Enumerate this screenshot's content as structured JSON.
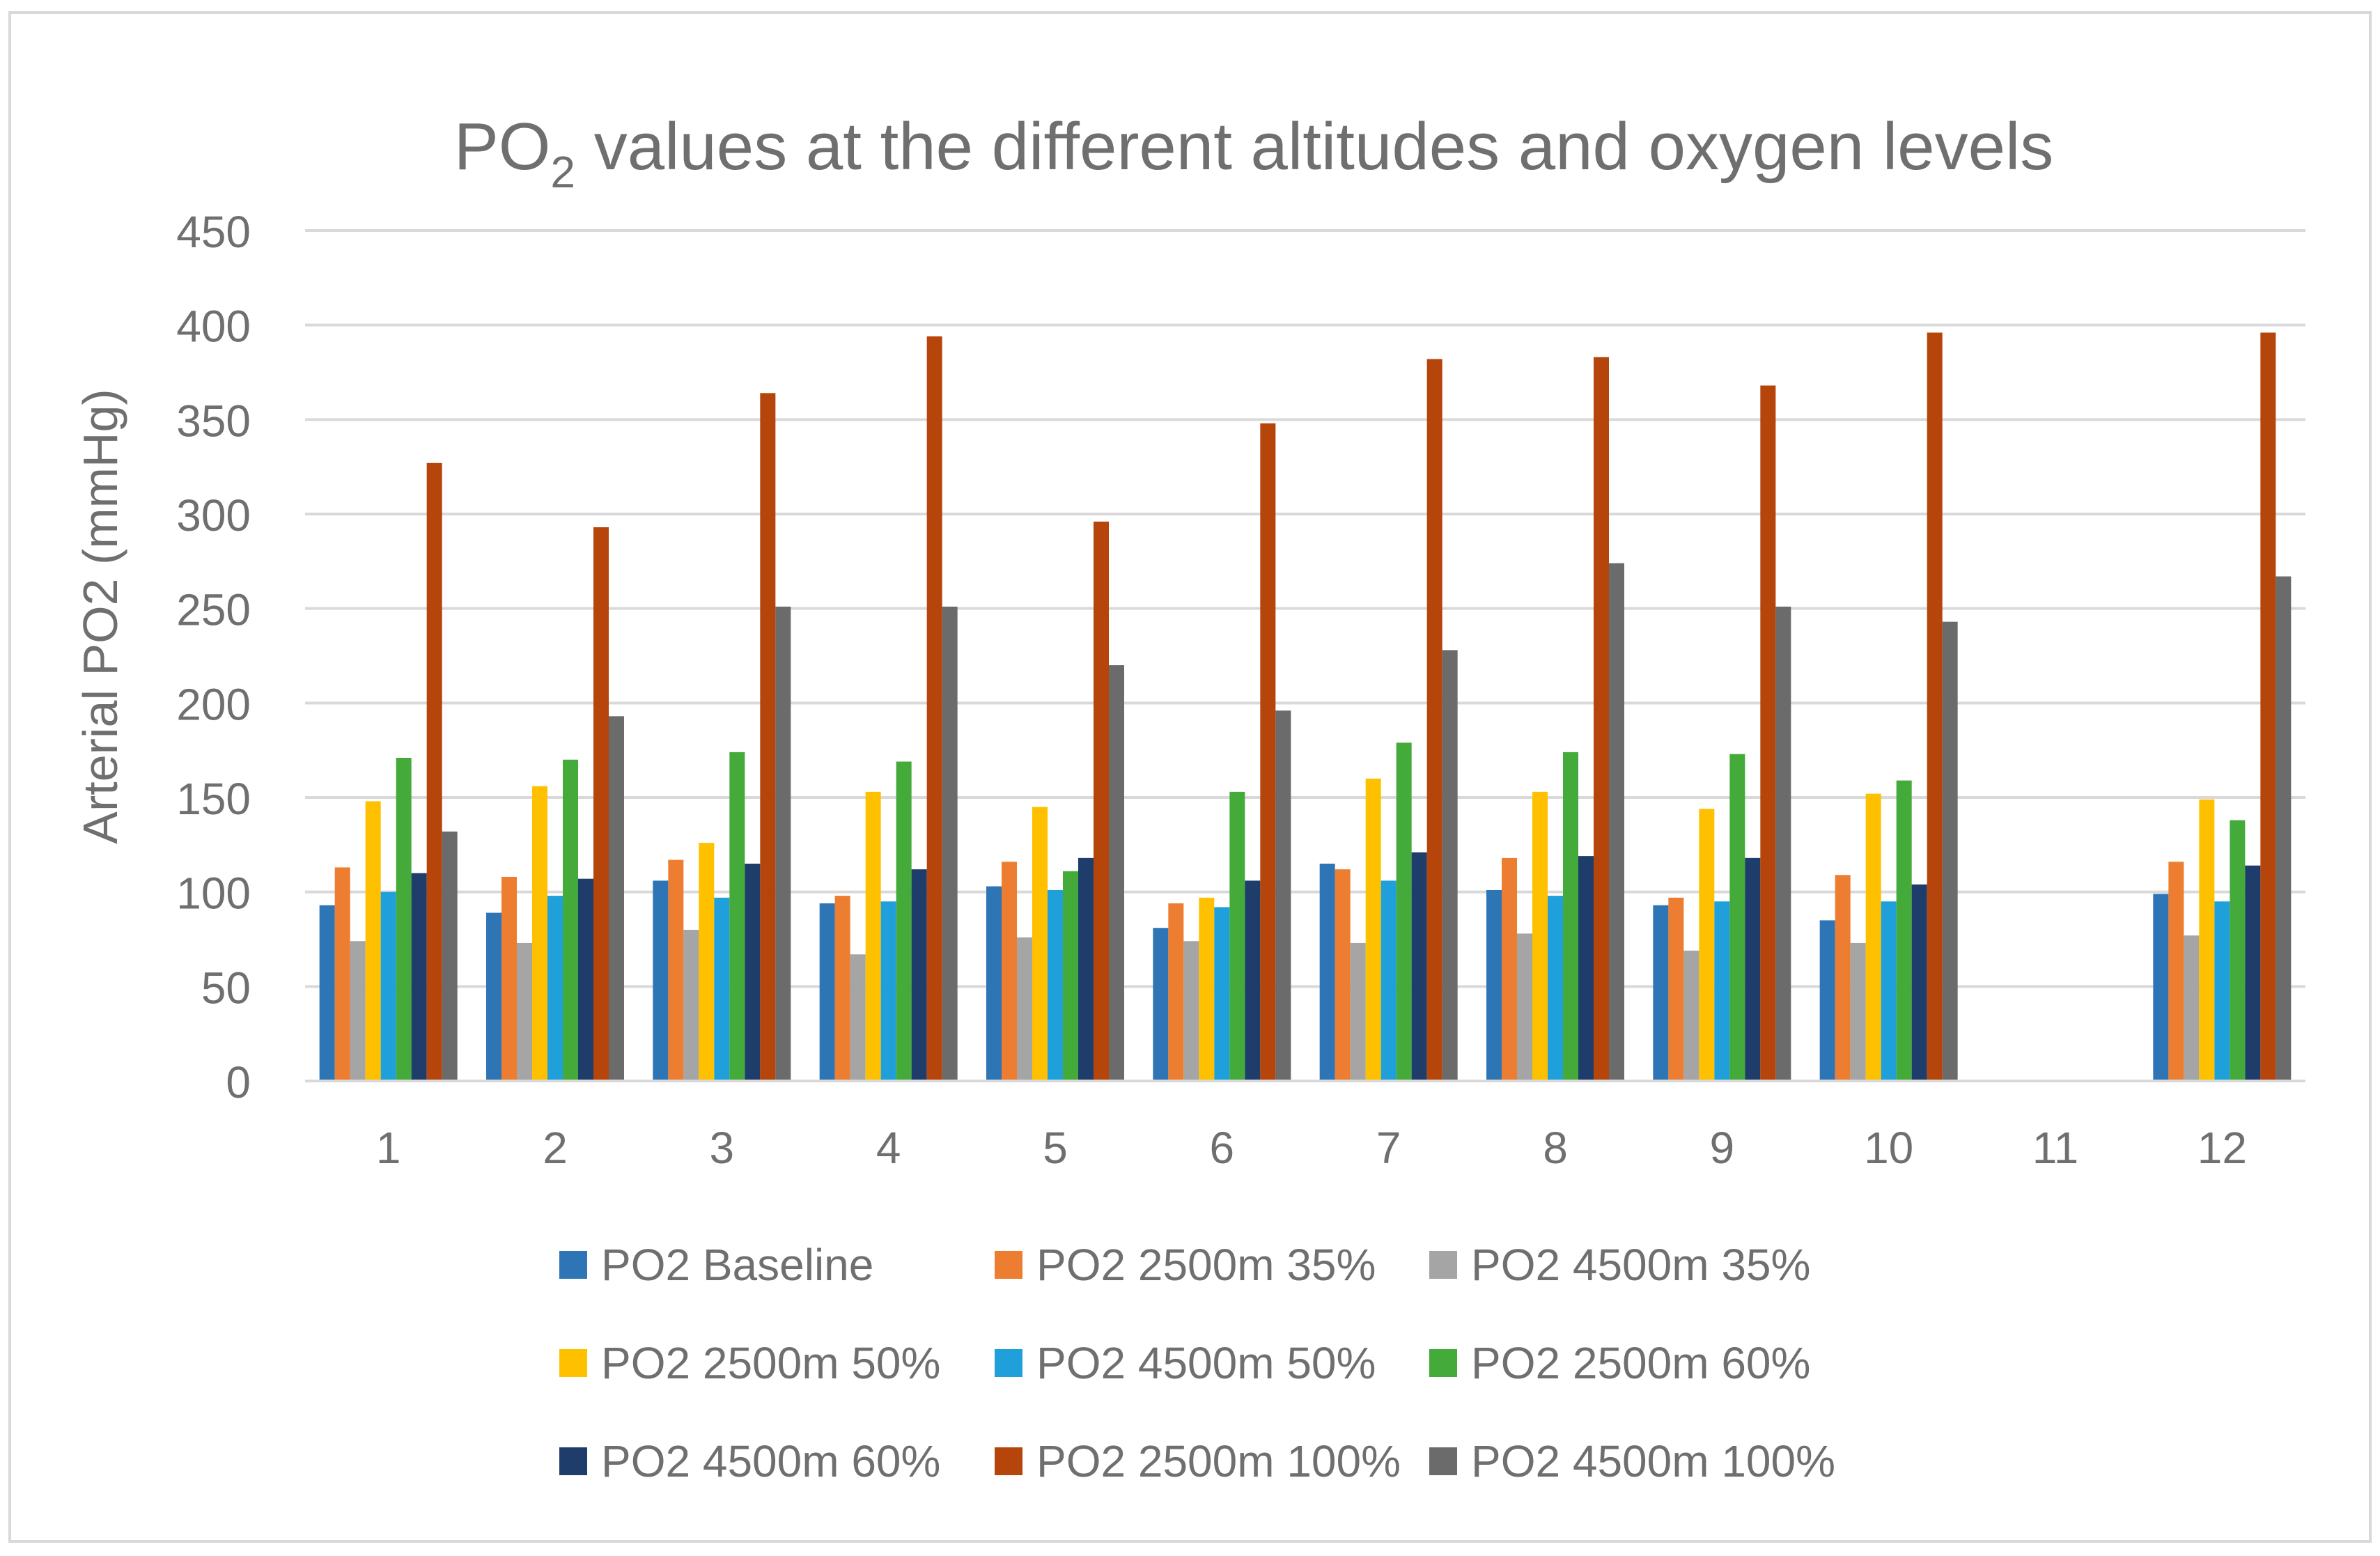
{
  "chart_data": {
    "type": "bar",
    "title": {
      "prefix": "PO",
      "subscript": "2",
      "suffix": " values at the different altitudes and oxygen levels"
    },
    "xlabel": "",
    "ylabel": "Arterial PO2 (mmHg)",
    "ylim": [
      0,
      450
    ],
    "yticks": [
      0,
      50,
      100,
      150,
      200,
      250,
      300,
      350,
      400,
      450
    ],
    "grid": true,
    "legend_position": "bottom",
    "categories": [
      "1",
      "2",
      "3",
      "4",
      "5",
      "6",
      "7",
      "8",
      "9",
      "10",
      "11",
      "12"
    ],
    "series": [
      {
        "name": "PO2 Baseline",
        "color": "#2E75B6",
        "values": [
          93,
          89,
          106,
          94,
          103,
          81,
          115,
          101,
          93,
          85,
          null,
          99
        ]
      },
      {
        "name": "PO2 2500m 35%",
        "color": "#ED7D31",
        "values": [
          113,
          108,
          117,
          98,
          116,
          94,
          112,
          118,
          97,
          109,
          null,
          116
        ]
      },
      {
        "name": "PO2 4500m 35%",
        "color": "#A5A5A5",
        "values": [
          74,
          73,
          80,
          67,
          76,
          74,
          73,
          78,
          69,
          73,
          null,
          77
        ]
      },
      {
        "name": "PO2 2500m 50%",
        "color": "#FFC000",
        "values": [
          148,
          156,
          126,
          153,
          145,
          97,
          160,
          153,
          144,
          152,
          null,
          149
        ]
      },
      {
        "name": "PO2 4500m 50%",
        "color": "#1FA0DB",
        "values": [
          100,
          98,
          97,
          95,
          101,
          92,
          106,
          98,
          95,
          95,
          null,
          95
        ]
      },
      {
        "name": "PO2 2500m 60%",
        "color": "#44AA3A",
        "values": [
          171,
          170,
          174,
          169,
          111,
          153,
          179,
          174,
          173,
          159,
          null,
          138
        ]
      },
      {
        "name": "PO2 4500m 60%",
        "color": "#1F3D6B",
        "values": [
          110,
          107,
          115,
          112,
          118,
          106,
          121,
          119,
          118,
          104,
          null,
          114
        ]
      },
      {
        "name": "PO2 2500m 100%",
        "color": "#B5450B",
        "values": [
          327,
          293,
          364,
          394,
          296,
          348,
          382,
          383,
          368,
          396,
          null,
          396
        ]
      },
      {
        "name": "PO2 4500m 100%",
        "color": "#6B6B6B",
        "values": [
          132,
          193,
          251,
          251,
          220,
          196,
          228,
          274,
          251,
          243,
          null,
          267
        ]
      }
    ]
  }
}
